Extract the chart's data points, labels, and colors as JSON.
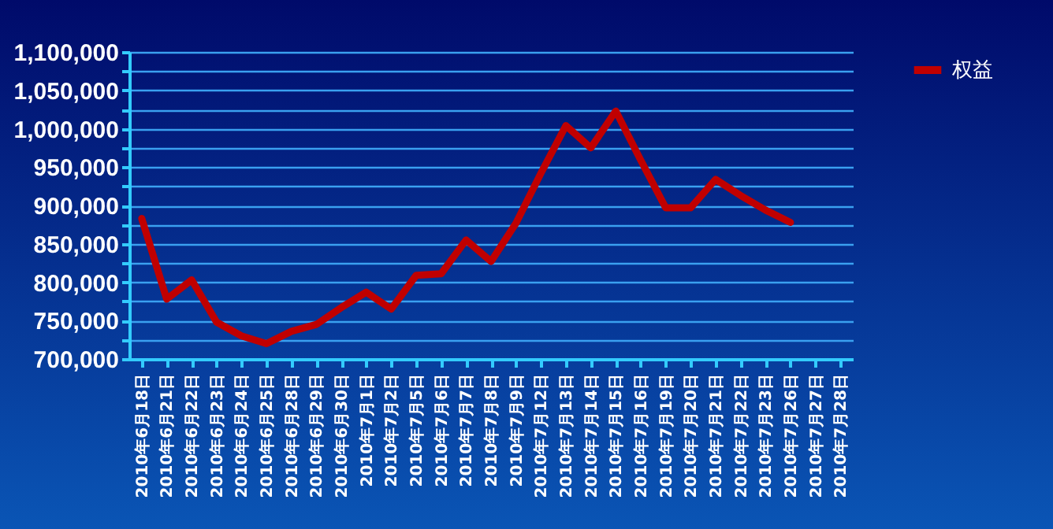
{
  "chart_data": {
    "type": "line",
    "categories": [
      "2010年6月18日",
      "2010年6月21日",
      "2010年6月22日",
      "2010年6月23日",
      "2010年6月24日",
      "2010年6月25日",
      "2010年6月28日",
      "2010年6月29日",
      "2010年6月30日",
      "2010年7月1日",
      "2010年7月2日",
      "2010年7月5日",
      "2010年7月6日",
      "2010年7月7日",
      "2010年7月8日",
      "2010年7月9日",
      "2010年7月12日",
      "2010年7月13日",
      "2010年7月14日",
      "2010年7月15日",
      "2010年7月16日",
      "2010年7月19日",
      "2010年7月20日",
      "2010年7月21日",
      "2010年7月22日",
      "2010年7月23日",
      "2010年7月26日",
      "2010年7月27日",
      "2010年7月28日"
    ],
    "series": [
      {
        "name": "权益",
        "color": "#c00000",
        "values": [
          883000,
          778000,
          803000,
          748000,
          730000,
          720000,
          736000,
          745000,
          767000,
          787000,
          765000,
          809000,
          811000,
          855000,
          827000,
          877000,
          942000,
          1004000,
          975000,
          1023000,
          959000,
          897000,
          897000,
          934000,
          913000,
          894000,
          878000,
          null,
          null
        ]
      }
    ],
    "ylim": [
      700000,
      1100000
    ],
    "yticks": [
      {
        "value": 700000,
        "label": "700,000"
      },
      {
        "value": 725000,
        "label": null
      },
      {
        "value": 750000,
        "label": "750,000"
      },
      {
        "value": 775000,
        "label": null
      },
      {
        "value": 800000,
        "label": "800,000"
      },
      {
        "value": 825000,
        "label": null
      },
      {
        "value": 850000,
        "label": "850,000"
      },
      {
        "value": 875000,
        "label": null
      },
      {
        "value": 900000,
        "label": "900,000"
      },
      {
        "value": 925000,
        "label": null
      },
      {
        "value": 950000,
        "label": "950,000"
      },
      {
        "value": 975000,
        "label": null
      },
      {
        "value": 1000000,
        "label": "1,000,000"
      },
      {
        "value": 1025000,
        "label": null
      },
      {
        "value": 1050000,
        "label": "1,050,000"
      },
      {
        "value": 1075000,
        "label": null
      },
      {
        "value": 1100000,
        "label": "1,100,000"
      }
    ],
    "grid": true,
    "legend": "right",
    "marker": "none",
    "line_style": "solid"
  }
}
